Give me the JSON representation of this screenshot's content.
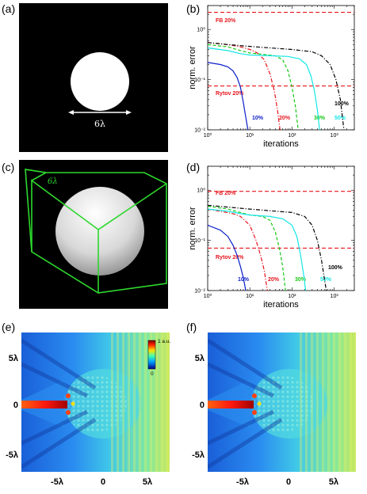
{
  "panel_labels": {
    "a": "(a)",
    "b": "(b)",
    "c": "(c)",
    "d": "(d)",
    "e": "(e)",
    "f": "(f)"
  },
  "panel_a": {
    "size_label": "6λ"
  },
  "panel_c": {
    "size_label": "6λ"
  },
  "panel_e": {
    "colorbar_top": "1 a.u.",
    "colorbar_bottom": "0",
    "y_ticks": [
      "5λ",
      "0",
      "-5λ"
    ],
    "x_ticks": [
      "-5λ",
      "0",
      "5λ"
    ]
  },
  "panel_f": {
    "y_ticks": [
      "5λ",
      "0",
      "-5λ"
    ],
    "x_ticks": [
      "-5λ",
      "0",
      "5λ"
    ]
  },
  "colors": {
    "red": "#e8141c",
    "blue": "#0a1ec8",
    "green": "#14c814",
    "cyan": "#14e6e6",
    "black": "#000000"
  },
  "chart_data": [
    {
      "id": "b",
      "type": "line",
      "log_x": true,
      "log_y": true,
      "xlabel": "iterations",
      "ylabel": "norm. error",
      "xlim": [
        1,
        3000
      ],
      "ylim": [
        0.01,
        3
      ],
      "x_ticks": [
        "10⁰",
        "10¹",
        "10²",
        "10³"
      ],
      "y_ticks": [
        "10⁰",
        "10⁻¹",
        "10⁻²"
      ],
      "reference_lines": [
        {
          "label": "FB 20%",
          "y": 2.2
        },
        {
          "label": "Rytov 20%",
          "y": 0.075
        }
      ],
      "series": [
        {
          "name": "10%",
          "style": "solid",
          "color": "blue",
          "points": [
            [
              1,
              0.22
            ],
            [
              2,
              0.2
            ],
            [
              3,
              0.18
            ],
            [
              4,
              0.15
            ],
            [
              5,
              0.11
            ],
            [
              6,
              0.07
            ],
            [
              7,
              0.035
            ],
            [
              8,
              0.018
            ],
            [
              9,
              0.01
            ]
          ]
        },
        {
          "name": "20%",
          "style": "dashdot",
          "color": "red",
          "points": [
            [
              1,
              0.55
            ],
            [
              3,
              0.5
            ],
            [
              6,
              0.45
            ],
            [
              10,
              0.4
            ],
            [
              15,
              0.34
            ],
            [
              22,
              0.25
            ],
            [
              30,
              0.13
            ],
            [
              38,
              0.06
            ],
            [
              45,
              0.025
            ],
            [
              52,
              0.01
            ]
          ]
        },
        {
          "name": "30%",
          "style": "dashed",
          "color": "green",
          "points": [
            [
              1,
              0.5
            ],
            [
              3,
              0.45
            ],
            [
              6,
              0.38
            ],
            [
              10,
              0.34
            ],
            [
              20,
              0.32
            ],
            [
              40,
              0.3
            ],
            [
              60,
              0.25
            ],
            [
              80,
              0.15
            ],
            [
              100,
              0.07
            ],
            [
              120,
              0.03
            ],
            [
              140,
              0.01
            ]
          ]
        },
        {
          "name": "50%",
          "style": "solid",
          "color": "cyan",
          "points": [
            [
              1,
              0.43
            ],
            [
              3,
              0.38
            ],
            [
              6,
              0.33
            ],
            [
              10,
              0.31
            ],
            [
              30,
              0.3
            ],
            [
              80,
              0.29
            ],
            [
              150,
              0.26
            ],
            [
              220,
              0.2
            ],
            [
              280,
              0.12
            ],
            [
              340,
              0.06
            ],
            [
              400,
              0.025
            ],
            [
              450,
              0.01
            ]
          ]
        },
        {
          "name": "100%",
          "style": "dashdot",
          "color": "black",
          "points": [
            [
              1,
              0.55
            ],
            [
              3,
              0.5
            ],
            [
              10,
              0.46
            ],
            [
              30,
              0.43
            ],
            [
              100,
              0.4
            ],
            [
              300,
              0.36
            ],
            [
              500,
              0.3
            ],
            [
              800,
              0.2
            ],
            [
              1100,
              0.1
            ],
            [
              1400,
              0.04
            ],
            [
              1700,
              0.01
            ]
          ]
        }
      ]
    },
    {
      "id": "d",
      "type": "line",
      "log_x": true,
      "log_y": true,
      "xlabel": "iterations",
      "ylabel": "norm. error",
      "xlim": [
        1,
        3000
      ],
      "ylim": [
        0.01,
        3
      ],
      "x_ticks": [
        "10⁰",
        "10¹",
        "10²",
        "10³"
      ],
      "y_ticks": [
        "10⁰",
        "10⁻¹",
        "10⁻²"
      ],
      "reference_lines": [
        {
          "label": "FB 20%",
          "y": 0.95
        },
        {
          "label": "Rytov 20%",
          "y": 0.07
        }
      ],
      "series": [
        {
          "name": "10%",
          "style": "solid",
          "color": "blue",
          "points": [
            [
              1,
              0.2
            ],
            [
              2,
              0.16
            ],
            [
              3,
              0.12
            ],
            [
              4,
              0.08
            ],
            [
              5,
              0.05
            ],
            [
              6,
              0.03
            ],
            [
              7,
              0.018
            ],
            [
              8,
              0.01
            ]
          ]
        },
        {
          "name": "20%",
          "style": "dashdot",
          "color": "red",
          "points": [
            [
              1,
              0.42
            ],
            [
              2,
              0.38
            ],
            [
              4,
              0.34
            ],
            [
              6,
              0.3
            ],
            [
              10,
              0.2
            ],
            [
              14,
              0.1
            ],
            [
              18,
              0.05
            ],
            [
              22,
              0.025
            ],
            [
              26,
              0.01
            ]
          ]
        },
        {
          "name": "30%",
          "style": "dashed",
          "color": "green",
          "points": [
            [
              1,
              0.48
            ],
            [
              3,
              0.42
            ],
            [
              6,
              0.36
            ],
            [
              10,
              0.32
            ],
            [
              20,
              0.3
            ],
            [
              30,
              0.25
            ],
            [
              40,
              0.15
            ],
            [
              50,
              0.07
            ],
            [
              60,
              0.03
            ],
            [
              70,
              0.01
            ]
          ]
        },
        {
          "name": "50%",
          "style": "solid",
          "color": "cyan",
          "points": [
            [
              1,
              0.42
            ],
            [
              3,
              0.38
            ],
            [
              6,
              0.34
            ],
            [
              10,
              0.32
            ],
            [
              30,
              0.3
            ],
            [
              60,
              0.27
            ],
            [
              100,
              0.2
            ],
            [
              130,
              0.12
            ],
            [
              160,
              0.05
            ],
            [
              190,
              0.02
            ],
            [
              210,
              0.01
            ]
          ]
        },
        {
          "name": "100%",
          "style": "dashdot",
          "color": "black",
          "points": [
            [
              1,
              0.5
            ],
            [
              3,
              0.46
            ],
            [
              10,
              0.42
            ],
            [
              30,
              0.39
            ],
            [
              100,
              0.36
            ],
            [
              200,
              0.3
            ],
            [
              300,
              0.2
            ],
            [
              400,
              0.1
            ],
            [
              500,
              0.04
            ],
            [
              600,
              0.015
            ],
            [
              650,
              0.01
            ]
          ]
        }
      ]
    }
  ]
}
